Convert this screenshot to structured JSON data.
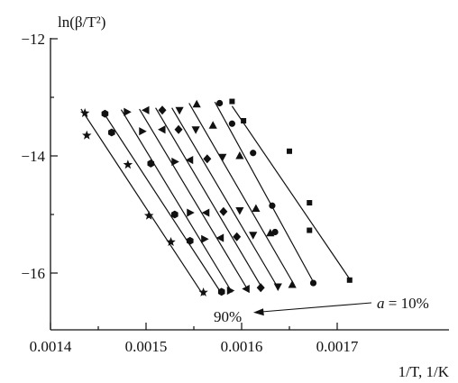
{
  "chart_data": {
    "type": "scatter",
    "title": "",
    "ylabel": "ln(β/T²)",
    "xlabel": "1/T, 1/K",
    "xlim": [
      0.0014,
      0.00175
    ],
    "ylim": [
      -17.0,
      -12.0
    ],
    "x_ticks": [
      "0.0014",
      "0.0015",
      "0.0016",
      "0.0017"
    ],
    "x_tick_values": [
      0.0014,
      0.0015,
      0.0016,
      0.0017
    ],
    "y_ticks": [
      "−12",
      "−14",
      "−16"
    ],
    "y_tick_values": [
      -12,
      -14,
      -16
    ],
    "grid": false,
    "legend": "none",
    "annotations": {
      "low": "90%",
      "high_prefix": "a",
      "high_value": " = 10%"
    },
    "series": [
      {
        "marker": "square",
        "x": [
          0.00159,
          0.001602,
          0.00165,
          0.001671,
          0.001671,
          0.001713
        ],
        "y": [
          -13.07,
          -13.4,
          -13.92,
          -14.8,
          -15.27,
          -16.12
        ],
        "fit": [
          [
            0.00159,
            -13.15
          ],
          [
            0.001713,
            -16.1
          ]
        ]
      },
      {
        "marker": "circle",
        "x": [
          0.001577,
          0.00159,
          0.001612,
          0.001632,
          0.001635,
          0.001675
        ],
        "y": [
          -13.1,
          -13.45,
          -13.95,
          -14.85,
          -15.3,
          -16.17
        ],
        "fit": [
          [
            0.001572,
            -13.08
          ],
          [
            0.001675,
            -16.15
          ]
        ]
      },
      {
        "marker": "triangle-up",
        "x": [
          0.001553,
          0.00157,
          0.001598,
          0.001615,
          0.00163,
          0.001653
        ],
        "y": [
          -13.12,
          -13.48,
          -14.0,
          -14.9,
          -15.32,
          -16.2
        ],
        "fit": [
          [
            0.001545,
            -13.1
          ],
          [
            0.001655,
            -16.2
          ]
        ]
      },
      {
        "marker": "triangle-down",
        "x": [
          0.001535,
          0.001552,
          0.00158,
          0.001598,
          0.001612,
          0.001638
        ],
        "y": [
          -13.22,
          -13.55,
          -14.02,
          -14.93,
          -15.35,
          -16.23
        ],
        "fit": [
          [
            0.001527,
            -13.18
          ],
          [
            0.001638,
            -16.25
          ]
        ]
      },
      {
        "marker": "diamond",
        "x": [
          0.001517,
          0.001534,
          0.001564,
          0.001581,
          0.001595,
          0.00162
        ],
        "y": [
          -13.22,
          -13.55,
          -14.05,
          -14.95,
          -15.38,
          -16.25
        ],
        "fit": [
          [
            0.00151,
            -13.18
          ],
          [
            0.001622,
            -16.27
          ]
        ]
      },
      {
        "marker": "triangle-left",
        "x": [
          0.0015,
          0.001517,
          0.001546,
          0.001563,
          0.001578,
          0.001605
        ],
        "y": [
          -13.22,
          -13.55,
          -14.07,
          -14.97,
          -15.4,
          -16.27
        ],
        "fit": [
          [
            0.001493,
            -13.2
          ],
          [
            0.001607,
            -16.3
          ]
        ]
      },
      {
        "marker": "triangle-right",
        "x": [
          0.00148,
          0.001496,
          0.00153,
          0.001546,
          0.001561,
          0.001588
        ],
        "y": [
          -13.25,
          -13.58,
          -14.1,
          -14.97,
          -15.42,
          -16.3
        ],
        "fit": [
          [
            0.001474,
            -13.21
          ],
          [
            0.00159,
            -16.33
          ]
        ]
      },
      {
        "marker": "hexagon",
        "x": [
          0.001457,
          0.001464,
          0.001505,
          0.00153,
          0.001546,
          0.001579
        ],
        "y": [
          -13.28,
          -13.6,
          -14.13,
          -15.0,
          -15.45,
          -16.32
        ],
        "fit": [
          [
            0.001455,
            -13.25
          ],
          [
            0.001579,
            -16.35
          ]
        ]
      },
      {
        "marker": "star",
        "x": [
          0.001436,
          0.001438,
          0.001481,
          0.001503,
          0.001526,
          0.00156
        ],
        "y": [
          -13.27,
          -13.65,
          -14.15,
          -15.02,
          -15.47,
          -16.33
        ],
        "fit": [
          [
            0.001432,
            -13.2
          ],
          [
            0.00156,
            -16.38
          ]
        ]
      }
    ]
  }
}
